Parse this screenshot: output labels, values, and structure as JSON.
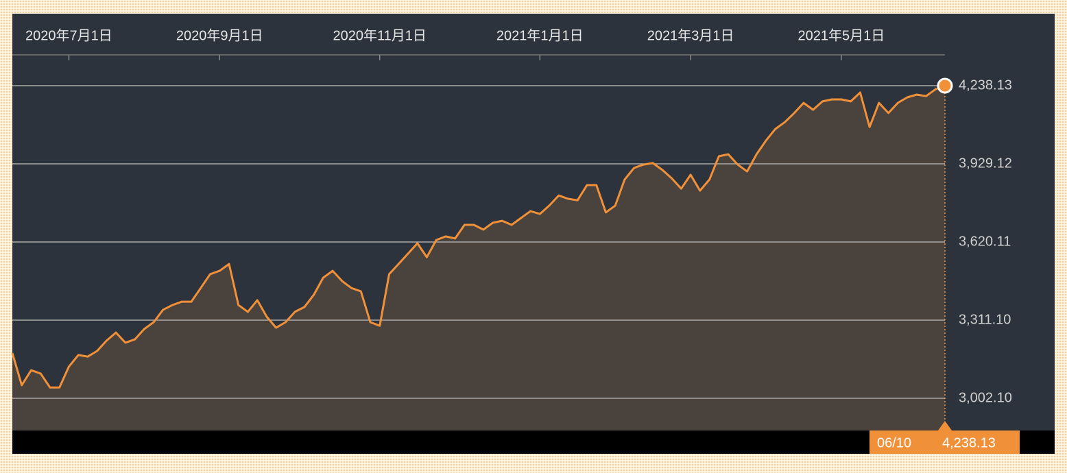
{
  "chart_data": {
    "type": "area",
    "categories": [
      null,
      null,
      null,
      null,
      null,
      null,
      "2020年7月1日",
      null,
      null,
      null,
      null,
      null,
      null,
      null,
      null,
      null,
      null,
      null,
      null,
      null,
      null,
      null,
      "2020年9月1日",
      null,
      null,
      null,
      null,
      null,
      null,
      null,
      null,
      null,
      null,
      null,
      null,
      null,
      null,
      null,
      null,
      "2020年11月1日",
      null,
      null,
      null,
      null,
      null,
      null,
      null,
      null,
      null,
      null,
      null,
      null,
      null,
      null,
      null,
      null,
      "2021年1月1日",
      null,
      null,
      null,
      null,
      null,
      null,
      null,
      null,
      null,
      null,
      null,
      null,
      null,
      null,
      null,
      "2021年3月1日",
      null,
      null,
      null,
      null,
      null,
      null,
      null,
      null,
      null,
      null,
      null,
      null,
      null,
      null,
      null,
      "2021年5月1日",
      null,
      null,
      null,
      null,
      null,
      null,
      null,
      null,
      null,
      null,
      null
    ],
    "series": [
      {
        "color": "#f0913a",
        "values": [
          3181,
          3054,
          3113,
          3100,
          3045,
          3045,
          3127,
          3173,
          3167,
          3189,
          3230,
          3262,
          3222,
          3235,
          3276,
          3303,
          3352,
          3371,
          3384,
          3384,
          3438,
          3493,
          3506,
          3533,
          3371,
          3344,
          3390,
          3325,
          3281,
          3303,
          3344,
          3363,
          3411,
          3479,
          3506,
          3466,
          3438,
          3425,
          3303,
          3289,
          3493,
          3533,
          3574,
          3615,
          3560,
          3628,
          3642,
          3634,
          3688,
          3688,
          3669,
          3696,
          3704,
          3688,
          3715,
          3742,
          3731,
          3764,
          3804,
          3791,
          3785,
          3845,
          3845,
          3737,
          3764,
          3867,
          3913,
          3926,
          3932,
          3905,
          3872,
          3831,
          3886,
          3823,
          3867,
          3959,
          3967,
          3926,
          3899,
          3967,
          4021,
          4067,
          4094,
          4130,
          4170,
          4143,
          4176,
          4184,
          4184,
          4176,
          4211,
          4075,
          4170,
          4130,
          4170,
          4192,
          4203,
          4197,
          4224,
          4238.13
        ]
      }
    ],
    "ylim": [
      2874.7,
      4360.1
    ],
    "yticks": [
      {
        "value": 3002.1,
        "label": "3,002.10"
      },
      {
        "value": 3311.1,
        "label": "3,311.10"
      },
      {
        "value": 3620.11,
        "label": "3,620.11"
      },
      {
        "value": 3929.12,
        "label": "3,929.12"
      },
      {
        "value": 4238.13,
        "label": "4,238.13"
      }
    ],
    "grid": true,
    "highlight": {
      "date": "06/10",
      "value": 4238.13,
      "value_label": "4,238.13"
    }
  }
}
